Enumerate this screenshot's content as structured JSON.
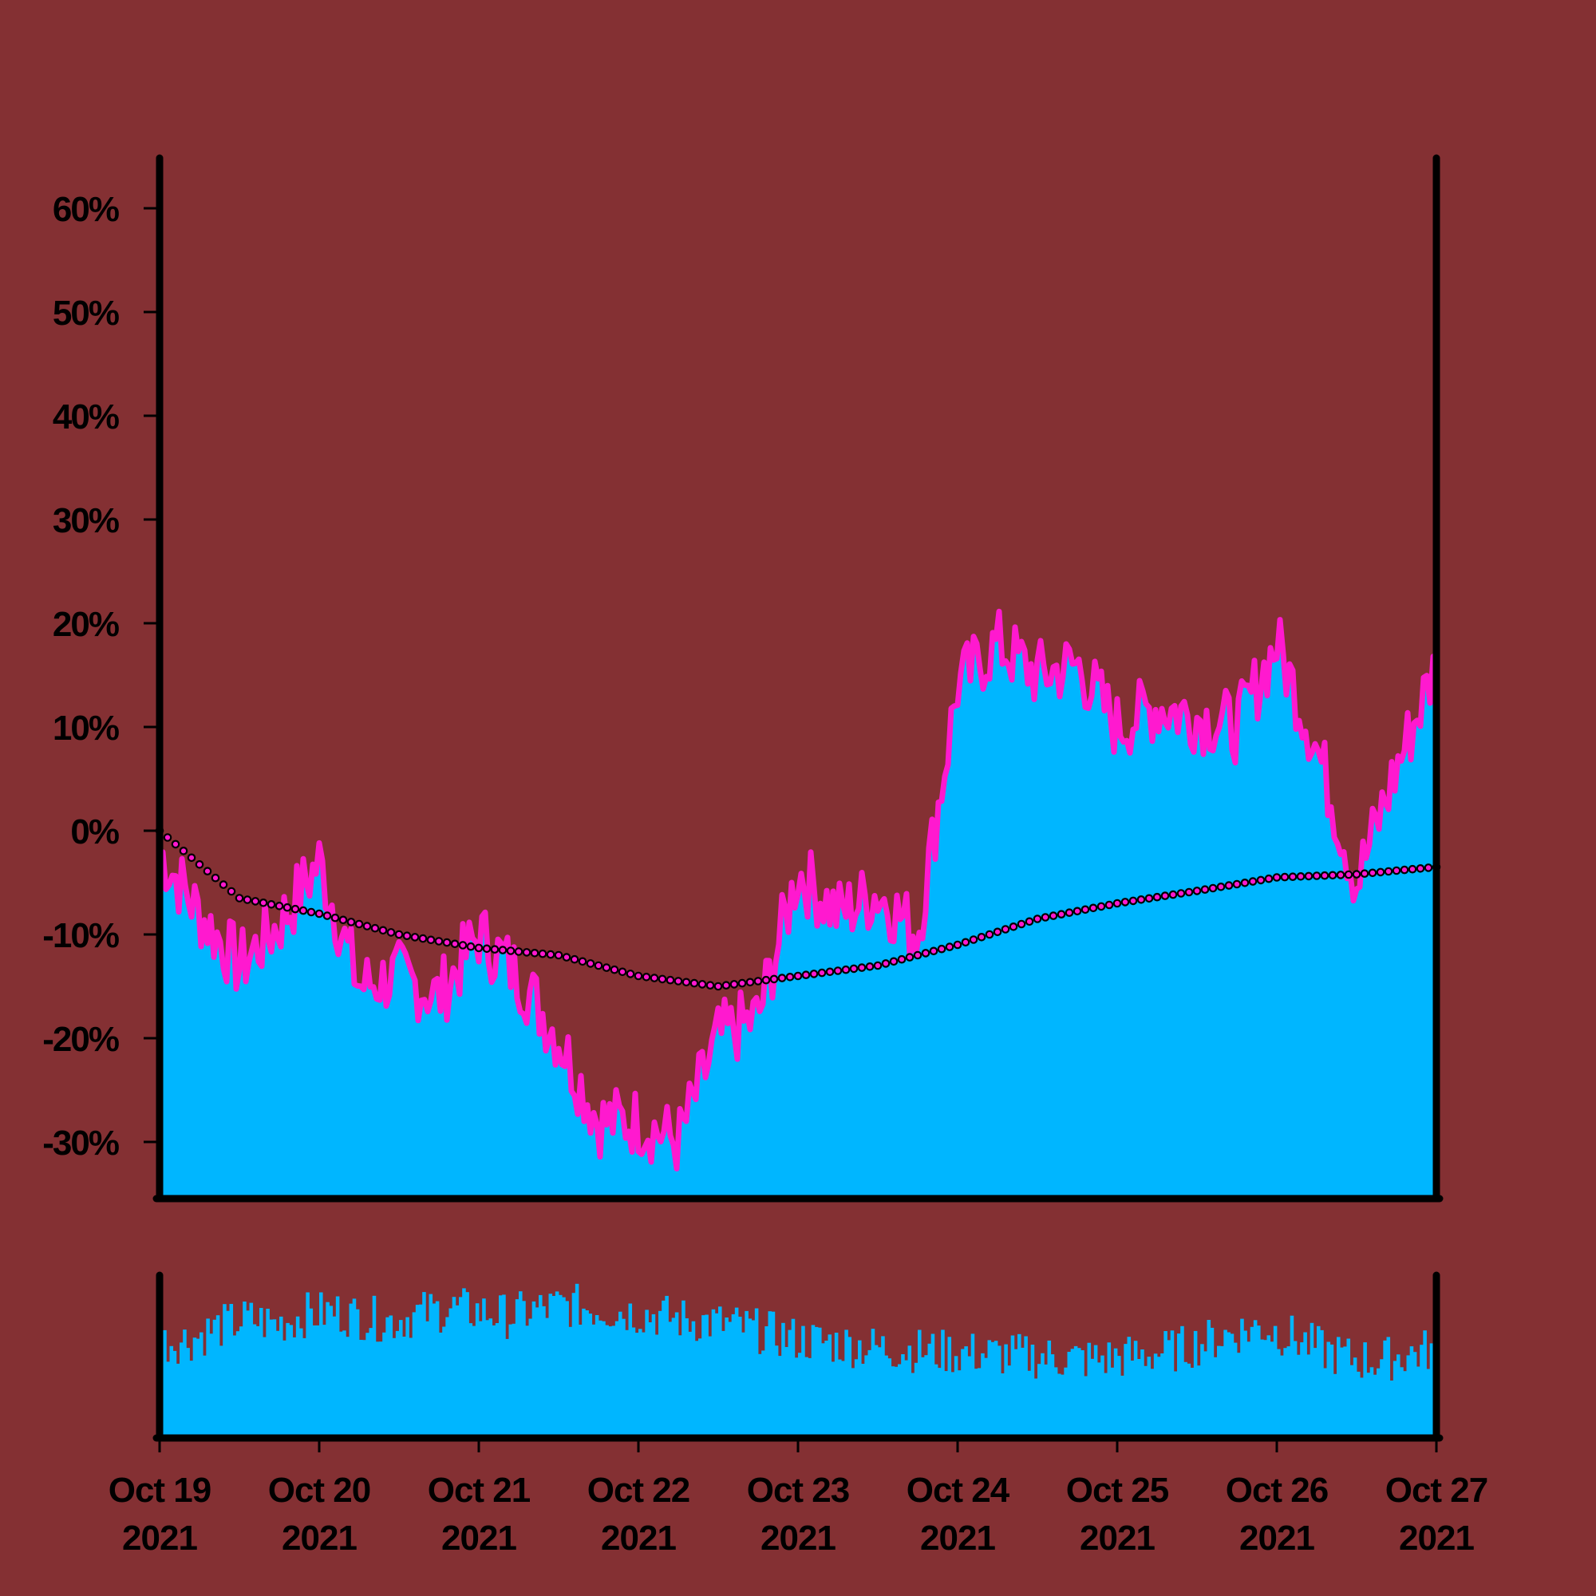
{
  "chart_data": {
    "type": "area",
    "title": "",
    "xlabel": "",
    "ylabel": "",
    "ylim": [
      -35,
      60
    ],
    "yticks": [
      {
        "value": 60,
        "label": "60%"
      },
      {
        "value": 50,
        "label": "50%"
      },
      {
        "value": 40,
        "label": "40%"
      },
      {
        "value": 30,
        "label": "30%"
      },
      {
        "value": 20,
        "label": "20%"
      },
      {
        "value": 10,
        "label": "10%"
      },
      {
        "value": 0,
        "label": "0%"
      },
      {
        "value": -10,
        "label": "-10%"
      },
      {
        "value": -20,
        "label": "-20%"
      },
      {
        "value": -30,
        "label": "-30%"
      }
    ],
    "xticks": [
      {
        "date": "2021-10-19",
        "label_line1": "Oct 19",
        "label_line2": "2021"
      },
      {
        "date": "2021-10-20",
        "label_line1": "Oct 20",
        "label_line2": "2021"
      },
      {
        "date": "2021-10-21",
        "label_line1": "Oct 21",
        "label_line2": "2021"
      },
      {
        "date": "2021-10-22",
        "label_line1": "Oct 22",
        "label_line2": "2021"
      },
      {
        "date": "2021-10-23",
        "label_line1": "Oct 23",
        "label_line2": "2021"
      },
      {
        "date": "2021-10-24",
        "label_line1": "Oct 24",
        "label_line2": "2021"
      },
      {
        "date": "2021-10-25",
        "label_line1": "Oct 25",
        "label_line2": "2021"
      },
      {
        "date": "2021-10-26",
        "label_line1": "Oct 26",
        "label_line2": "2021"
      },
      {
        "date": "2021-10-27",
        "label_line1": "Oct 27",
        "label_line2": "2021"
      }
    ],
    "xlim": [
      "2021-10-19 00:00",
      "2021-10-27 00:00"
    ],
    "grid": false,
    "legend": "none",
    "colors": {
      "background": "#843033",
      "area_fill": "#00b6ff",
      "price_line": "#ff19cf",
      "average_dots_fill": "#ff19cf",
      "average_dots_edge": "#000000",
      "axes": "#000000"
    },
    "price_series": {
      "name": "",
      "x": [
        "2021-10-19 00:00",
        "2021-10-19 06:00",
        "2021-10-19 12:00",
        "2021-10-19 18:00",
        "2021-10-20 00:00",
        "2021-10-20 06:00",
        "2021-10-20 12:00",
        "2021-10-20 18:00",
        "2021-10-21 00:00",
        "2021-10-21 06:00",
        "2021-10-21 12:00",
        "2021-10-21 18:00",
        "2021-10-22 00:00",
        "2021-10-22 06:00",
        "2021-10-22 12:00",
        "2021-10-22 18:00",
        "2021-10-23 00:00",
        "2021-10-23 06:00",
        "2021-10-23 12:00",
        "2021-10-23 18:00",
        "2021-10-24 00:00",
        "2021-10-24 06:00",
        "2021-10-24 12:00",
        "2021-10-24 18:00",
        "2021-10-25 00:00",
        "2021-10-25 06:00",
        "2021-10-25 12:00",
        "2021-10-25 18:00",
        "2021-10-26 00:00",
        "2021-10-26 06:00",
        "2021-10-26 12:00",
        "2021-10-26 18:00",
        "2021-10-27 00:00"
      ],
      "y": [
        -2,
        -8,
        -13,
        -9,
        -3,
        -15,
        -14,
        -16,
        -10,
        -14,
        -20,
        -28,
        -28,
        -30,
        -20,
        -18,
        -4,
        -8,
        -6,
        -10,
        14,
        18,
        15,
        16,
        10,
        12,
        11,
        10,
        18,
        8,
        -5,
        6,
        16
      ]
    },
    "average_series": {
      "name": "",
      "x": [
        "2021-10-19 00:00",
        "2021-10-19 12:00",
        "2021-10-20 00:00",
        "2021-10-20 12:00",
        "2021-10-21 00:00",
        "2021-10-21 12:00",
        "2021-10-22 00:00",
        "2021-10-22 12:00",
        "2021-10-23 00:00",
        "2021-10-23 12:00",
        "2021-10-24 00:00",
        "2021-10-24 12:00",
        "2021-10-25 00:00",
        "2021-10-25 12:00",
        "2021-10-26 00:00",
        "2021-10-26 12:00",
        "2021-10-27 00:00"
      ],
      "y": [
        0,
        -6.5,
        -8,
        -10,
        -11.3,
        -12,
        -14,
        -15,
        -14,
        -13,
        -11,
        -8.5,
        -7,
        -5.8,
        -4.5,
        -4.2,
        -3.5
      ]
    },
    "volume_series": {
      "name": "",
      "x_start": "2021-10-19 00:00",
      "x_end": "2021-10-27 00:00",
      "bar_count": 384,
      "values": [
        0.6,
        0.62,
        0.7,
        0.75,
        0.72,
        0.78,
        0.8,
        0.76,
        0.74,
        0.79,
        0.82,
        0.8,
        0.77,
        0.81,
        0.84,
        0.82,
        0.8,
        0.78,
        0.75,
        0.73,
        0.7,
        0.66,
        0.62,
        0.6,
        0.58,
        0.56,
        0.55,
        0.54,
        0.53,
        0.52,
        0.51,
        0.5,
        0.49,
        0.5,
        0.52,
        0.55,
        0.6,
        0.66,
        0.7,
        0.64,
        0.56,
        0.5,
        0.48,
        0.52,
        0.56
      ]
    }
  }
}
